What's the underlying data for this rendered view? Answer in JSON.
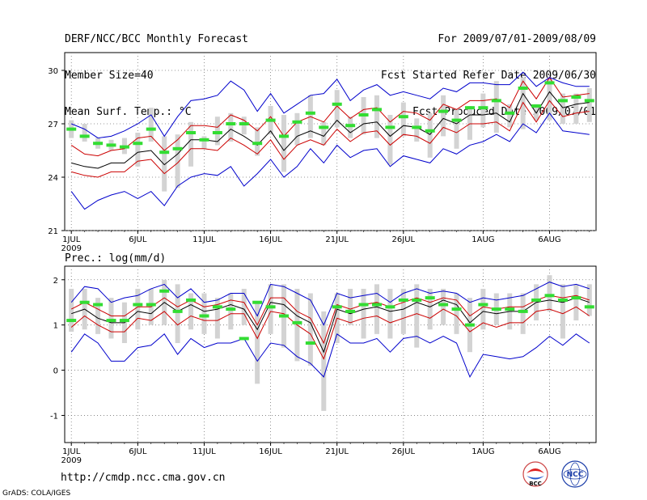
{
  "header": {
    "left": [
      "DERF/NCC/BCC Monthly Forecast",
      "Member Size=40",
      "Mean Surf. Temp.: °C"
    ],
    "right": [
      "For 2009/07/01-2009/08/09",
      "Fcst Started Refer Date 2009/06/30",
      "Fcst Produced Date 2009/07/01"
    ]
  },
  "footer": {
    "url": "http://cmdp.ncc.cma.gov.cn",
    "credit": "GrADS: COLA/IGES",
    "logo_bcc": "BCC",
    "logo_ncc": "NCC"
  },
  "colors": {
    "mean": "#000000",
    "spread": "#cc0000",
    "extreme": "#0000cc",
    "bar": "#d3d3d3",
    "obs": "#33dd33"
  },
  "chart_data": [
    {
      "type": "line",
      "title": "Mean Surf. Temp.: °C",
      "xlabel": "",
      "ylabel": "",
      "x_tick_labels": [
        "1JUL",
        "6JUL",
        "11JUL",
        "16JUL",
        "21JUL",
        "26JUL",
        "1AUG",
        "6AUG"
      ],
      "x_tick_year": "2009",
      "x_tick_days": [
        1,
        6,
        11,
        16,
        21,
        26,
        32,
        37
      ],
      "xlim": [
        0.5,
        40.5
      ],
      "ylim": [
        21,
        31
      ],
      "yticks": [
        21,
        24,
        27,
        30
      ],
      "grid": true,
      "bars_low": [
        26.2,
        26.0,
        25.6,
        25.5,
        25.3,
        24.6,
        26.0,
        23.2,
        23.4,
        24.6,
        25.6,
        25.8,
        26.0,
        26.4,
        25.2,
        26.4,
        24.3,
        25.8,
        26.2,
        25.8,
        26.8,
        26.2,
        26.4,
        26.2,
        24.7,
        26.3,
        26.0,
        25.1,
        26.3,
        25.6,
        26.1,
        26.8,
        26.5,
        26.8,
        26.7,
        27.2,
        27.2,
        27.0,
        27.0,
        27.1
      ],
      "bars_high": [
        27.2,
        27.0,
        26.2,
        26.1,
        26.2,
        26.5,
        27.9,
        26.3,
        26.4,
        27.1,
        26.3,
        27.4,
        27.6,
        27.4,
        26.8,
        28.0,
        27.5,
        27.6,
        28.6,
        27.1,
        28.9,
        27.4,
        28.5,
        28.6,
        27.5,
        28.2,
        27.3,
        27.6,
        28.6,
        27.8,
        28.0,
        28.7,
        29.4,
        28.1,
        29.6,
        28.1,
        29.6,
        28.7,
        28.7,
        29.0
      ],
      "series": [
        {
          "name": "ensemble mean",
          "values": [
            24.8,
            24.6,
            24.5,
            24.8,
            24.8,
            25.4,
            25.5,
            24.7,
            25.3,
            26.1,
            26.1,
            26.0,
            26.7,
            26.3,
            25.8,
            26.6,
            25.5,
            26.3,
            26.6,
            26.3,
            27.2,
            26.5,
            27.0,
            27.1,
            26.3,
            26.9,
            26.8,
            26.4,
            27.3,
            27.0,
            27.5,
            27.5,
            27.6,
            27.1,
            28.7,
            27.6,
            28.8,
            27.9,
            28.1,
            28.2
          ]
        },
        {
          "name": "mean + sd",
          "values": [
            25.8,
            25.3,
            25.2,
            25.5,
            25.6,
            26.2,
            26.3,
            25.5,
            26.1,
            26.9,
            26.9,
            26.8,
            27.5,
            27.2,
            26.6,
            27.4,
            26.3,
            27.1,
            27.4,
            27.1,
            28.0,
            27.3,
            27.8,
            27.9,
            27.1,
            27.7,
            27.6,
            27.2,
            28.1,
            27.8,
            28.3,
            28.3,
            28.4,
            27.9,
            29.4,
            28.4,
            29.6,
            28.5,
            28.6,
            28.7
          ]
        },
        {
          "name": "mean - sd",
          "values": [
            24.3,
            24.1,
            24.0,
            24.3,
            24.3,
            24.9,
            25.0,
            24.2,
            24.8,
            25.6,
            25.6,
            25.5,
            26.2,
            25.8,
            25.3,
            26.1,
            25.0,
            25.8,
            26.1,
            25.8,
            26.7,
            26.0,
            26.5,
            26.6,
            25.8,
            26.4,
            26.3,
            25.9,
            26.8,
            26.5,
            27.0,
            27.0,
            27.1,
            26.6,
            28.2,
            27.1,
            28.3,
            27.4,
            27.6,
            27.7
          ]
        },
        {
          "name": "ensemble max",
          "values": [
            27.0,
            26.7,
            26.2,
            26.3,
            26.6,
            27.0,
            27.5,
            26.3,
            27.4,
            28.3,
            28.4,
            28.6,
            29.4,
            28.9,
            27.7,
            28.7,
            27.6,
            28.1,
            28.6,
            28.7,
            29.5,
            28.3,
            28.9,
            29.2,
            28.6,
            28.8,
            28.6,
            28.4,
            29.0,
            28.8,
            29.3,
            29.3,
            29.2,
            29.2,
            29.9,
            29.1,
            29.6,
            29.3,
            29.1,
            29.1
          ]
        },
        {
          "name": "ensemble min",
          "values": [
            23.2,
            22.2,
            22.7,
            23.0,
            23.2,
            22.8,
            23.2,
            22.4,
            23.5,
            24.0,
            24.2,
            24.1,
            24.6,
            23.5,
            24.2,
            25.0,
            24.0,
            24.6,
            25.6,
            24.8,
            25.8,
            25.1,
            25.5,
            25.6,
            24.6,
            25.2,
            25.0,
            24.8,
            25.6,
            25.3,
            25.8,
            26.0,
            26.4,
            26.0,
            27.0,
            26.5,
            27.6,
            26.6,
            26.5,
            26.4
          ]
        }
      ],
      "observed": [
        26.7,
        26.3,
        25.9,
        25.8,
        25.7,
        25.9,
        26.7,
        25.4,
        25.6,
        26.5,
        26.1,
        26.5,
        27.0,
        27.0,
        25.9,
        27.2,
        26.3,
        27.1,
        27.6,
        26.8,
        28.1,
        26.9,
        27.5,
        27.8,
        26.8,
        27.4,
        26.8,
        26.6,
        27.7,
        27.2,
        27.9,
        27.9,
        28.3,
        27.6,
        29.0,
        28.0,
        29.3,
        28.3,
        28.5,
        28.3
      ]
    },
    {
      "type": "line",
      "title": "Prec.: log(mm/d)",
      "xlabel": "",
      "ylabel": "",
      "x_tick_labels": [
        "1JUL",
        "6JUL",
        "11JUL",
        "16JUL",
        "21JUL",
        "26JUL",
        "1AUG",
        "6AUG"
      ],
      "x_tick_year": "2009",
      "x_tick_days": [
        1,
        6,
        11,
        16,
        21,
        26,
        32,
        37
      ],
      "xlim": [
        0.5,
        40.5
      ],
      "ylim": [
        -1.6,
        2.3
      ],
      "yticks": [
        -1,
        0,
        1,
        2
      ],
      "grid": true,
      "bars_low": [
        0.85,
        0.9,
        0.8,
        0.7,
        0.6,
        0.9,
        1.0,
        1.0,
        0.6,
        0.9,
        0.8,
        0.7,
        0.9,
        1.0,
        -0.3,
        0.8,
        0.5,
        0.2,
        0.1,
        -0.9,
        0.6,
        1.0,
        0.7,
        0.8,
        0.7,
        0.8,
        0.5,
        0.9,
        1.0,
        0.8,
        0.4,
        0.9,
        1.0,
        0.9,
        0.8,
        1.1,
        1.3,
        0.7,
        1.1,
        1.2
      ],
      "bars_high": [
        1.8,
        1.8,
        1.6,
        1.6,
        1.5,
        1.8,
        1.8,
        2.0,
        1.9,
        1.7,
        1.7,
        1.6,
        1.7,
        1.8,
        1.5,
        1.9,
        1.9,
        1.8,
        1.7,
        1.3,
        1.7,
        1.8,
        1.8,
        1.9,
        1.8,
        1.8,
        1.9,
        1.8,
        1.8,
        1.7,
        1.6,
        1.8,
        1.7,
        1.7,
        1.7,
        1.9,
        2.1,
        1.9,
        1.9,
        1.9
      ],
      "series": [
        {
          "name": "ensemble mean",
          "values": [
            1.25,
            1.35,
            1.15,
            1.05,
            1.05,
            1.3,
            1.25,
            1.5,
            1.3,
            1.45,
            1.3,
            1.35,
            1.45,
            1.35,
            0.9,
            1.5,
            1.45,
            1.2,
            1.05,
            0.4,
            1.35,
            1.25,
            1.35,
            1.4,
            1.3,
            1.35,
            1.5,
            1.4,
            1.55,
            1.45,
            1.05,
            1.3,
            1.25,
            1.3,
            1.3,
            1.5,
            1.55,
            1.5,
            1.6,
            1.5
          ]
        },
        {
          "name": "mean + sd",
          "values": [
            1.35,
            1.5,
            1.35,
            1.2,
            1.2,
            1.4,
            1.4,
            1.6,
            1.4,
            1.55,
            1.4,
            1.45,
            1.55,
            1.5,
            1.0,
            1.6,
            1.6,
            1.3,
            1.15,
            0.6,
            1.45,
            1.35,
            1.45,
            1.5,
            1.4,
            1.5,
            1.6,
            1.5,
            1.6,
            1.55,
            1.2,
            1.4,
            1.35,
            1.4,
            1.4,
            1.55,
            1.65,
            1.6,
            1.65,
            1.55
          ]
        },
        {
          "name": "mean - sd",
          "values": [
            0.95,
            1.2,
            1.0,
            0.85,
            0.85,
            1.15,
            1.1,
            1.3,
            1.0,
            1.2,
            1.1,
            1.1,
            1.25,
            1.25,
            0.7,
            1.3,
            1.25,
            1.0,
            0.8,
            0.25,
            1.15,
            1.05,
            1.15,
            1.2,
            1.05,
            1.15,
            1.25,
            1.15,
            1.35,
            1.2,
            0.85,
            1.05,
            0.95,
            1.05,
            1.05,
            1.3,
            1.35,
            1.25,
            1.4,
            1.2
          ]
        },
        {
          "name": "ensemble max",
          "values": [
            1.5,
            1.85,
            1.8,
            1.5,
            1.6,
            1.65,
            1.8,
            1.9,
            1.6,
            1.8,
            1.5,
            1.55,
            1.7,
            1.7,
            1.2,
            1.9,
            1.85,
            1.7,
            1.55,
            1.0,
            1.7,
            1.6,
            1.65,
            1.7,
            1.5,
            1.7,
            1.8,
            1.7,
            1.75,
            1.7,
            1.5,
            1.6,
            1.55,
            1.6,
            1.65,
            1.8,
            1.95,
            1.85,
            1.9,
            1.8
          ]
        },
        {
          "name": "ensemble min",
          "values": [
            0.4,
            0.8,
            0.6,
            0.2,
            0.2,
            0.5,
            0.55,
            0.8,
            0.35,
            0.7,
            0.5,
            0.6,
            0.6,
            0.7,
            0.2,
            0.6,
            0.55,
            0.3,
            0.15,
            -0.15,
            0.8,
            0.6,
            0.6,
            0.7,
            0.4,
            0.7,
            0.75,
            0.6,
            0.75,
            0.6,
            -0.15,
            0.35,
            0.3,
            0.25,
            0.3,
            0.5,
            0.75,
            0.55,
            0.8,
            0.6
          ]
        }
      ],
      "observed": [
        1.1,
        1.5,
        1.45,
        1.1,
        1.1,
        1.45,
        1.45,
        1.75,
        1.3,
        1.55,
        1.2,
        1.4,
        1.35,
        0.7,
        1.5,
        1.4,
        1.2,
        1.05,
        0.6,
        null,
        1.4,
        1.3,
        1.45,
        1.45,
        1.4,
        1.55,
        1.55,
        1.6,
        1.45,
        1.35,
        1.0,
        1.45,
        1.35,
        1.35,
        1.3,
        1.55,
        1.65,
        1.55,
        1.6,
        1.4
      ]
    }
  ]
}
